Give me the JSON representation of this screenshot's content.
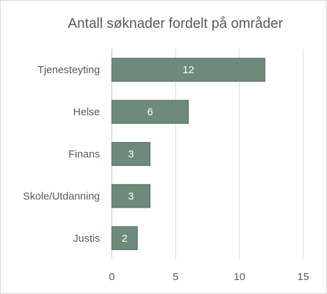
{
  "chart_data": {
    "type": "bar",
    "orientation": "horizontal",
    "title": "Antall søknader fordelt på områder",
    "categories": [
      "Tjenesteyting",
      "Helse",
      "Finans",
      "Skole/Utdanning",
      "Justis"
    ],
    "values": [
      12,
      6,
      3,
      3,
      2
    ],
    "data_labels": [
      "12",
      "6",
      "3",
      "3",
      "2"
    ],
    "xlim": [
      0,
      15
    ],
    "x_ticks": [
      0,
      5,
      10,
      15
    ],
    "x_tick_labels": [
      "0",
      "5",
      "10",
      "15"
    ],
    "grid": "vertical",
    "legend": "none",
    "bar_color": "#6d8a7a",
    "bar_border_color": "#4f6b5c",
    "grid_color": "#d9d9d9"
  }
}
